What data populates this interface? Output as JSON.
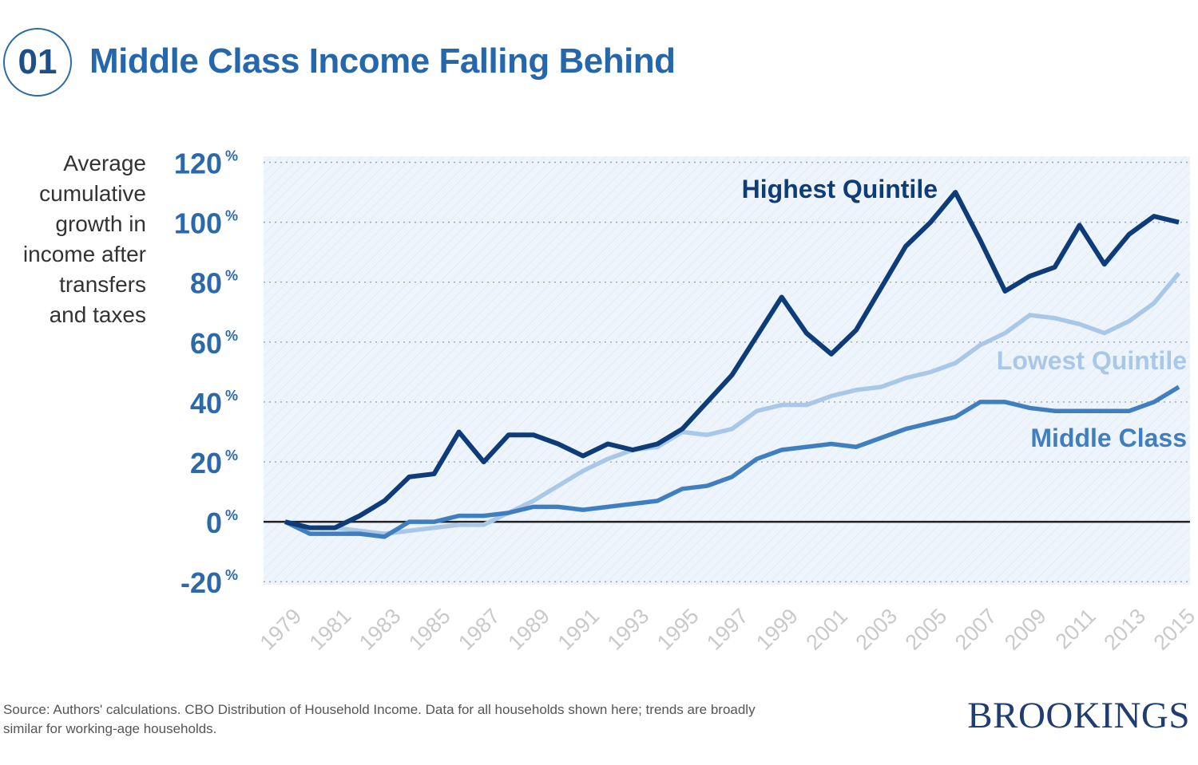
{
  "header": {
    "number": "01",
    "title": "Middle Class Income Falling Behind"
  },
  "y_axis_label": [
    "Average",
    "cumulative",
    "growth in",
    "income after",
    "transfers",
    "and taxes"
  ],
  "source": "Source: Authors' calculations. CBO Distribution of Household Income. Data for all households shown here; trends are broadly similar for working-age households.",
  "logo": "BROOKINGS",
  "colors": {
    "highest": "#0d3c78",
    "lowest": "#a9c8e8",
    "middle": "#3f7fbf",
    "title": "#2567ad",
    "tick": "#2b69ab",
    "xtick": "#c9c9c9"
  },
  "chart_data": {
    "type": "line",
    "x": [
      1979,
      1980,
      1981,
      1982,
      1983,
      1984,
      1985,
      1986,
      1987,
      1988,
      1989,
      1990,
      1991,
      1992,
      1993,
      1994,
      1995,
      1996,
      1997,
      1998,
      1999,
      2000,
      2001,
      2002,
      2003,
      2004,
      2005,
      2006,
      2007,
      2008,
      2009,
      2010,
      2011,
      2012,
      2013,
      2014,
      2015
    ],
    "x_tick_labels": [
      "1979",
      "1981",
      "1983",
      "1985",
      "1987",
      "1989",
      "1991",
      "1993",
      "1995",
      "1997",
      "1999",
      "2001",
      "2003",
      "2005",
      "2007",
      "2009",
      "2011",
      "2013",
      "2015"
    ],
    "y_tick_labels": [
      {
        "value": 120,
        "num": "120",
        "suffix": "%"
      },
      {
        "value": 100,
        "num": "100",
        "suffix": "%"
      },
      {
        "value": 80,
        "num": "80",
        "suffix": "%"
      },
      {
        "value": 60,
        "num": "60",
        "suffix": "%"
      },
      {
        "value": 40,
        "num": "40",
        "suffix": "%"
      },
      {
        "value": 20,
        "num": "20",
        "suffix": "%"
      },
      {
        "value": 0,
        "num": "0",
        "suffix": "%"
      },
      {
        "value": -20,
        "num": "-20",
        "suffix": "%"
      }
    ],
    "ylim": [
      -21,
      122
    ],
    "grid": true,
    "series": [
      {
        "name": "Highest Quintile",
        "key": "highest",
        "values": [
          0,
          -2,
          -2,
          2,
          7,
          15,
          16,
          30,
          20,
          29,
          29,
          26,
          22,
          26,
          24,
          26,
          31,
          40,
          49,
          62,
          75,
          63,
          56,
          64,
          78,
          92,
          100,
          110,
          94,
          77,
          82,
          85,
          99,
          86,
          96,
          102,
          100
        ]
      },
      {
        "name": "Lowest Quintile",
        "key": "lowest",
        "values": [
          0,
          -2,
          -2,
          -3,
          -4,
          -3,
          -2,
          -1,
          -1,
          3,
          7,
          12,
          17,
          21,
          24,
          25,
          30,
          29,
          31,
          37,
          39,
          39,
          42,
          44,
          45,
          48,
          50,
          53,
          59,
          63,
          69,
          68,
          66,
          63,
          67,
          73,
          83
        ]
      },
      {
        "name": "Middle Class",
        "key": "middle",
        "values": [
          0,
          -4,
          -4,
          -4,
          -5,
          0,
          0,
          2,
          2,
          3,
          5,
          5,
          4,
          5,
          6,
          7,
          11,
          12,
          15,
          21,
          24,
          25,
          26,
          25,
          28,
          31,
          33,
          35,
          40,
          40,
          38,
          37,
          37,
          37,
          37,
          40,
          45
        ]
      }
    ],
    "annotations": [
      {
        "text": "Highest Quintile",
        "series": "highest"
      },
      {
        "text": "Lowest Quintile",
        "series": "lowest"
      },
      {
        "text": "Middle Class",
        "series": "middle"
      }
    ]
  }
}
